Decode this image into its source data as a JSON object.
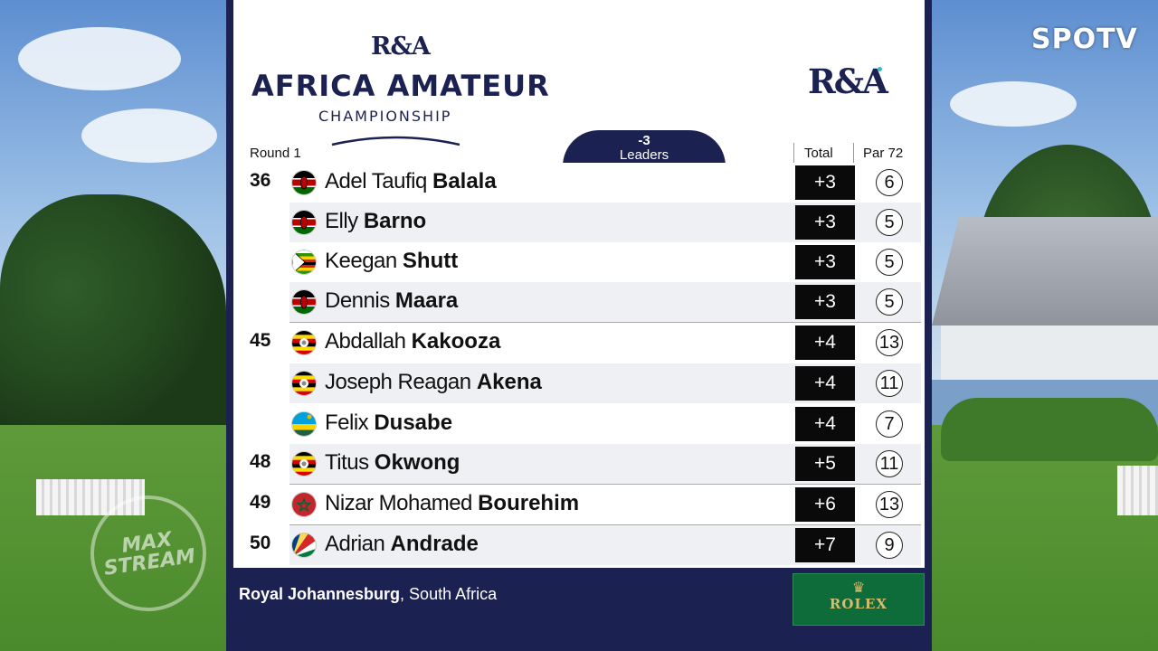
{
  "broadcaster": "SPOTV",
  "stream_watermark": [
    "MAX",
    "STREAM"
  ],
  "event": {
    "org_logo": "R&A",
    "title": "AFRICA AMATEUR",
    "subtitle": "CHAMPIONSHIP",
    "sponsor_logo_right": "R&A"
  },
  "header": {
    "round": "Round 1",
    "leaders_score": "-3",
    "leaders_label": "Leaders",
    "total_label": "Total",
    "par_label": "Par 72"
  },
  "players": [
    {
      "pos": "36",
      "first": "Adel Taufiq",
      "last": "Balala",
      "country_flag": "kenya-flag",
      "total": "+3",
      "thru": "6"
    },
    {
      "pos": "",
      "first": "Elly",
      "last": "Barno",
      "country_flag": "kenya-flag",
      "total": "+3",
      "thru": "5"
    },
    {
      "pos": "",
      "first": "Keegan",
      "last": "Shutt",
      "country_flag": "zimbabwe-flag",
      "total": "+3",
      "thru": "5"
    },
    {
      "pos": "",
      "first": "Dennis",
      "last": "Maara",
      "country_flag": "kenya-flag",
      "total": "+3",
      "thru": "5"
    },
    {
      "pos": "45",
      "first": "Abdallah",
      "last": "Kakooza",
      "country_flag": "uganda-flag",
      "total": "+4",
      "thru": "13"
    },
    {
      "pos": "",
      "first": "Joseph Reagan",
      "last": "Akena",
      "country_flag": "uganda-flag",
      "total": "+4",
      "thru": "11"
    },
    {
      "pos": "",
      "first": "Felix",
      "last": "Dusabe",
      "country_flag": "rwanda-flag",
      "total": "+4",
      "thru": "7"
    },
    {
      "pos": "48",
      "first": "Titus",
      "last": "Okwong",
      "country_flag": "uganda-flag",
      "total": "+5",
      "thru": "11"
    },
    {
      "pos": "49",
      "first": "Nizar Mohamed",
      "last": "Bourehim",
      "country_flag": "morocco-flag",
      "total": "+6",
      "thru": "13"
    },
    {
      "pos": "50",
      "first": "Adrian",
      "last": "Andrade",
      "country_flag": "seychelles-flag",
      "total": "+7",
      "thru": "9"
    }
  ],
  "footer": {
    "venue": "Royal Johannesburg",
    "location": "South Africa",
    "sponsor": "ROLEX"
  },
  "colors": {
    "navy": "#1b2151",
    "score_box": "#0a0a0a",
    "rolex_green": "#0e6b3a",
    "rolex_gold": "#d8bd6a"
  }
}
